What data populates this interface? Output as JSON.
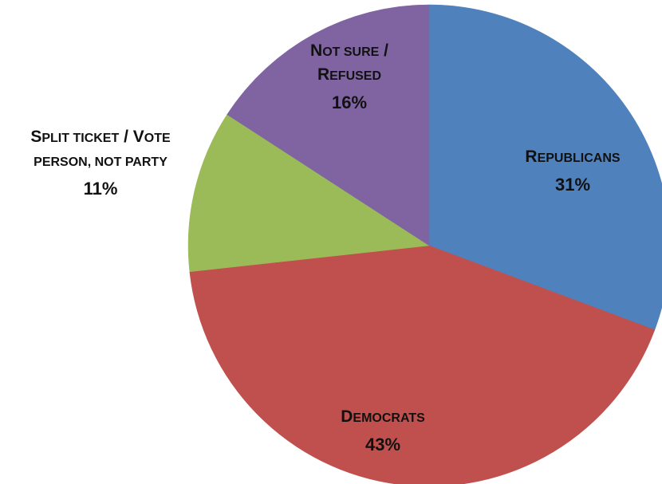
{
  "chart_data": {
    "type": "pie",
    "start_angle_deg": 0,
    "direction": "clockwise",
    "slices": [
      {
        "label_lines": [
          [
            {
              "text": "R",
              "case": "big"
            },
            {
              "text": "EPUBLICANS",
              "case": "small"
            }
          ]
        ],
        "value": 31,
        "value_label": "31%",
        "color": "#4F81BD"
      },
      {
        "label_lines": [
          [
            {
              "text": "D",
              "case": "big"
            },
            {
              "text": "EMOCRATS",
              "case": "small"
            }
          ]
        ],
        "value": 43,
        "value_label": "43%",
        "color": "#C0504D"
      },
      {
        "label_lines": [
          [
            {
              "text": "S",
              "case": "big"
            },
            {
              "text": "PLIT TICKET",
              "case": "small"
            },
            {
              "text": " / V",
              "case": "big"
            },
            {
              "text": "OTE",
              "case": "small"
            }
          ],
          [
            {
              "text": "PERSON, NOT PARTY",
              "case": "small"
            }
          ]
        ],
        "value": 11,
        "value_label": "11%",
        "color": "#9BBB59"
      },
      {
        "label_lines": [
          [
            {
              "text": "N",
              "case": "big"
            },
            {
              "text": "OT SURE",
              "case": "small"
            },
            {
              "text": " /",
              "case": "big"
            }
          ],
          [
            {
              "text": "R",
              "case": "big"
            },
            {
              "text": "EFUSED",
              "case": "small"
            }
          ]
        ],
        "value": 16,
        "value_label": "16%",
        "color": "#8064A2"
      }
    ]
  }
}
